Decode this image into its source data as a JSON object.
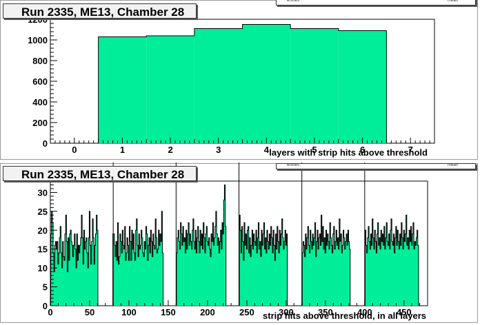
{
  "chart_data": [
    {
      "type": "bar",
      "title": "Run 2335, ME13, Chamber 28",
      "xlabel": "layers with strip hits above threshold",
      "ylabel": "",
      "xlim": [
        -0.5,
        7.5
      ],
      "ylim": [
        0,
        1200
      ],
      "x_ticks": [
        "0",
        "1",
        "2",
        "3",
        "4",
        "5",
        "6",
        "7"
      ],
      "y_ticks": [
        "0",
        "200",
        "400",
        "600",
        "800",
        "1000",
        "1200"
      ],
      "categories": [
        "1",
        "2",
        "3",
        "4",
        "5",
        "6"
      ],
      "values": [
        1030,
        1040,
        1110,
        1150,
        1110,
        1090
      ],
      "color": "#00ee99",
      "stats_labels": [
        "entries",
        "mean"
      ]
    },
    {
      "type": "bar",
      "title": "Run 2335, ME13, Chamber 28",
      "xlabel": "strip hits above threshold, in all layers",
      "ylabel": "",
      "xlim": [
        0,
        480
      ],
      "ylim": [
        0,
        33
      ],
      "x_ticks": [
        "0",
        "50",
        "100",
        "150",
        "200",
        "250",
        "300",
        "350",
        "400",
        "450"
      ],
      "y_ticks": [
        "0",
        "5",
        "10",
        "15",
        "20",
        "25",
        "30"
      ],
      "color": "#00ee99",
      "stats_labels": [
        "entries",
        "mean"
      ],
      "layer_separators": [
        80,
        160,
        240,
        320,
        400
      ],
      "bin_start": 1,
      "values": [
        19,
        25,
        22,
        14,
        9,
        16,
        17,
        15,
        17,
        11,
        14,
        18,
        21,
        14,
        10,
        17,
        13,
        12,
        19,
        24,
        17,
        9,
        18,
        12,
        19,
        20,
        17,
        16,
        13,
        16,
        19,
        15,
        10,
        19,
        12,
        16,
        14,
        16,
        18,
        24,
        18,
        11,
        20,
        15,
        17,
        18,
        14,
        10,
        18,
        25,
        16,
        11,
        17,
        23,
        18,
        11,
        16,
        19,
        24,
        20,
        0,
        0,
        0,
        0,
        0,
        0,
        0,
        0,
        0,
        0,
        0,
        0,
        0,
        0,
        0,
        0,
        0,
        0,
        0,
        19,
        19,
        16,
        13,
        17,
        12,
        22,
        11,
        13,
        19,
        17,
        14,
        20,
        16,
        15,
        21,
        12,
        14,
        18,
        16,
        12,
        21,
        17,
        12,
        20,
        15,
        19,
        14,
        12,
        20,
        23,
        16,
        13,
        19,
        15,
        16,
        20,
        18,
        14,
        13,
        17,
        15,
        21,
        19,
        12,
        16,
        18,
        14,
        20,
        17,
        13,
        19,
        16,
        15,
        23,
        18,
        14,
        15,
        20,
        16,
        19,
        17,
        25,
        14,
        0,
        0,
        0,
        0,
        0,
        0,
        0,
        0,
        0,
        0,
        0,
        0,
        0,
        0,
        0,
        0,
        0,
        14,
        18,
        20,
        17,
        15,
        22,
        19,
        16,
        21,
        17,
        18,
        14,
        20,
        15,
        19,
        22,
        16,
        19,
        17,
        15,
        20,
        23,
        17,
        15,
        20,
        14,
        18,
        21,
        17,
        14,
        20,
        16,
        19,
        15,
        22,
        18,
        14,
        19,
        21,
        17,
        16,
        18,
        15,
        13,
        19,
        17,
        22,
        16,
        18,
        21,
        25,
        19,
        16,
        18,
        14,
        17,
        20,
        15,
        22,
        19,
        28,
        32,
        21,
        0,
        0,
        0,
        0,
        0,
        0,
        0,
        0,
        0,
        0,
        0,
        0,
        0,
        0,
        0,
        0,
        0,
        24,
        20,
        14,
        21,
        17,
        12,
        22,
        16,
        19,
        15,
        20,
        21,
        14,
        18,
        13,
        16,
        20,
        15,
        19,
        17,
        16,
        20,
        14,
        18,
        22,
        15,
        17,
        13,
        20,
        16,
        19,
        22,
        15,
        18,
        14,
        20,
        17,
        15,
        19,
        16,
        21,
        18,
        14,
        20,
        16,
        12,
        19,
        15,
        21,
        17,
        14,
        20,
        16,
        19,
        23,
        18,
        15,
        17,
        20,
        16,
        19,
        0,
        0,
        0,
        0,
        0,
        0,
        0,
        0,
        0,
        0,
        0,
        0,
        0,
        0,
        0,
        0,
        0,
        0,
        0,
        14,
        17,
        16,
        13,
        19,
        15,
        18,
        21,
        16,
        14,
        20,
        17,
        15,
        19,
        16,
        18,
        22,
        13,
        17,
        20,
        15,
        18,
        19,
        16,
        24,
        17,
        21,
        15,
        18,
        14,
        20,
        16,
        19,
        17,
        15,
        22,
        18,
        16,
        14,
        19,
        21,
        15,
        17,
        20,
        16,
        18,
        15,
        23,
        17,
        19,
        14,
        16,
        20,
        18,
        15,
        17,
        19,
        16,
        20,
        17,
        15,
        0,
        0,
        0,
        0,
        0,
        0,
        0,
        0,
        0,
        0,
        0,
        0,
        0,
        0,
        0,
        0,
        0,
        0,
        0,
        20,
        16,
        14,
        18,
        21,
        17,
        15,
        19,
        16,
        23,
        18,
        15,
        20,
        17,
        14,
        19,
        22,
        16,
        18,
        15,
        20,
        17,
        19,
        16,
        21,
        15,
        18,
        22,
        17,
        16,
        19,
        15,
        20,
        23,
        17,
        16,
        19,
        14,
        18,
        21,
        16,
        20,
        17,
        15,
        19,
        16,
        22,
        18,
        15,
        20,
        17,
        19,
        24,
        16,
        18,
        15,
        20,
        17,
        21,
        16,
        19,
        22,
        15,
        17,
        16,
        18,
        20,
        16
      ]
    }
  ]
}
